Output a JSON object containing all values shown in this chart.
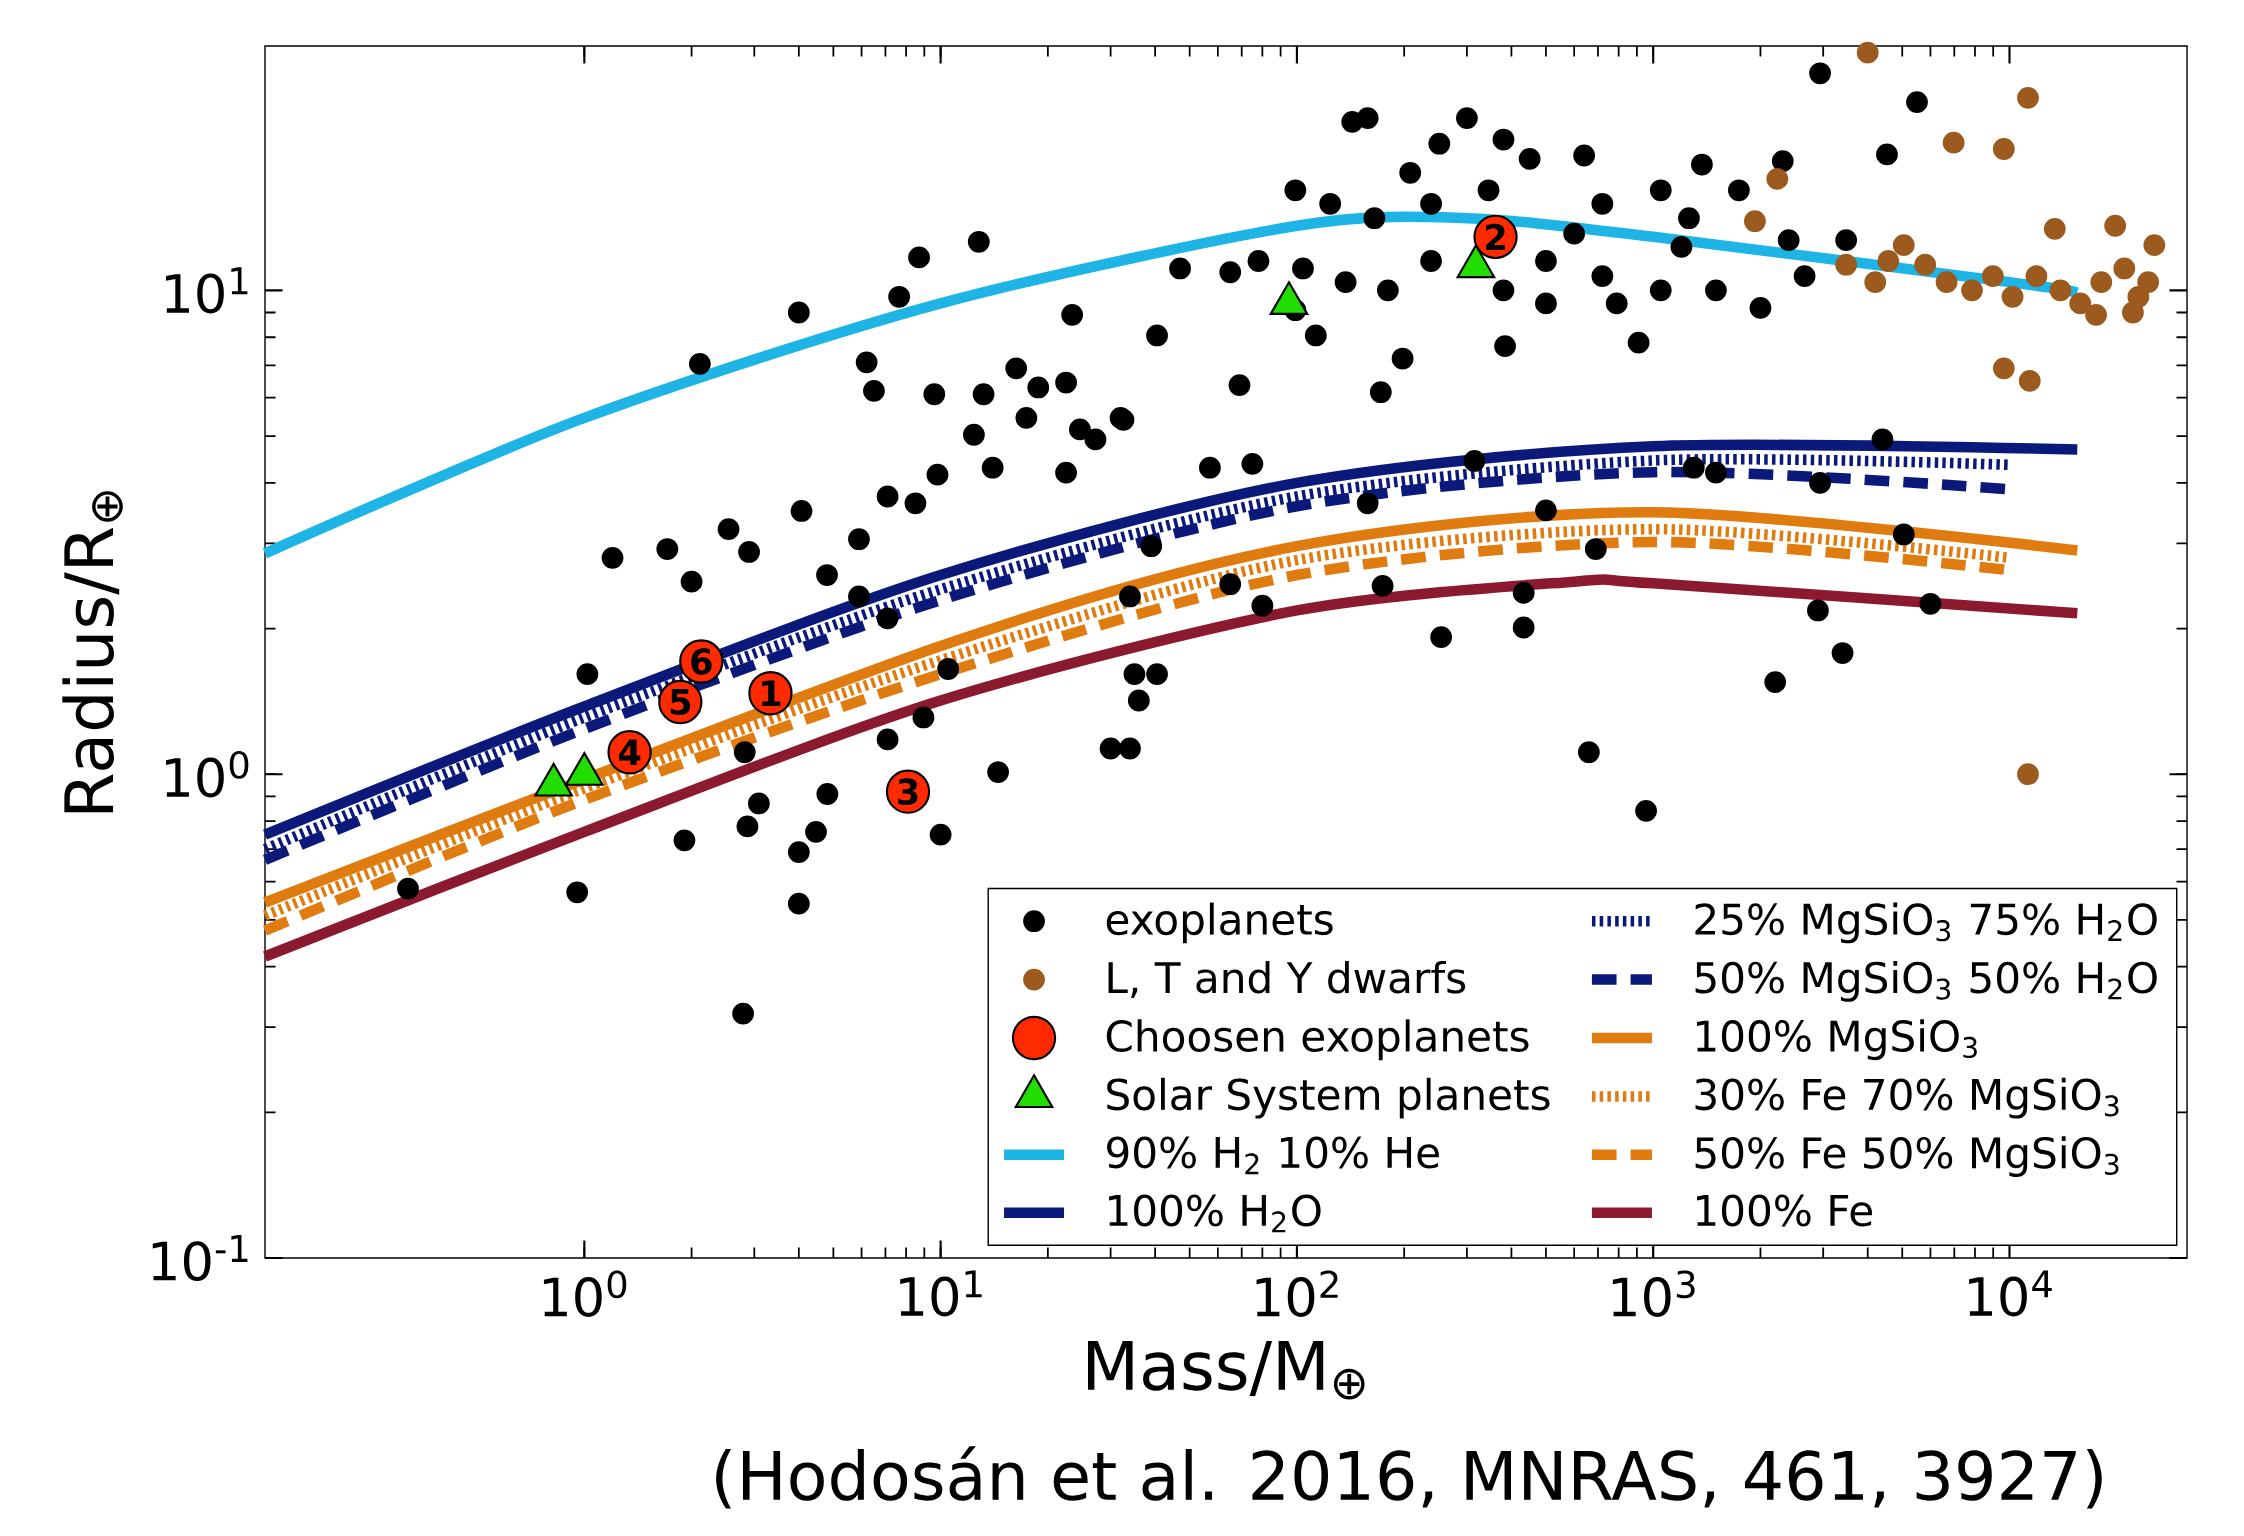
{
  "chart_data": {
    "type": "scatter",
    "xlabel": "Mass/M$_{⊕}$",
    "ylabel": "Radius/R$_{⊕}$",
    "log": "xy",
    "xlim": [
      0.127,
      31500
    ],
    "ylim": [
      0.1,
      32
    ],
    "xticks": [
      {
        "value": 1,
        "label": "10$^{0}$"
      },
      {
        "value": 10,
        "label": "10$^{1}$"
      },
      {
        "value": 100,
        "label": "10$^{2}$"
      },
      {
        "value": 1000,
        "label": "10$^{3}$"
      },
      {
        "value": 10000,
        "label": "10$^{4}$"
      }
    ],
    "yticks": [
      {
        "value": 0.1,
        "label": "10$^{-1}$"
      },
      {
        "value": 1,
        "label": "10$^{0}$"
      },
      {
        "value": 10,
        "label": "10$^{1}$"
      }
    ],
    "legend": "bottom right",
    "annotations": [
      "(Hodosán et al. 2016, MNRAS, 461, 3927)",
      {
        "text": "1",
        "x": 3.33,
        "y": 1.47
      },
      {
        "text": "2",
        "x": 361,
        "y": 12.9
      },
      {
        "text": "3",
        "x": 8.1,
        "y": 0.92
      },
      {
        "text": "4",
        "x": 1.34,
        "y": 1.11
      },
      {
        "text": "5",
        "x": 1.86,
        "y": 1.41
      },
      {
        "text": "6",
        "x": 2.13,
        "y": 1.71
      }
    ],
    "series": [
      {
        "name": "exoplanets",
        "type": "scatter",
        "marker": "circle",
        "color": "#000000",
        "x": [
          0.32,
          0.955,
          2.79,
          4.0,
          4.0,
          1.91,
          2.87,
          3.09,
          4.47,
          4.81,
          10,
          14.5,
          7.1,
          8.95,
          10.5,
          2.82,
          1.02,
          1.2,
          1.71,
          2.0,
          2.11,
          2.54,
          2.9,
          4.07,
          4.0,
          7.65,
          8.7,
          12.8,
          6.2,
          6.5,
          9.6,
          13.2,
          16.3,
          18.8,
          22.5,
          17.4,
          24.6,
          32.6,
          23.4,
          12.4,
          14.0,
          9.8,
          8.5,
          7.1,
          5.9,
          4.8,
          5.9,
          7.1,
          22.5,
          27.2,
          32,
          40.5,
          47,
          65,
          57,
          75,
          69,
          39,
          34,
          35,
          40.5,
          36,
          30,
          34,
          65,
          80,
          113,
          99,
          158,
          174,
          254,
          433,
          433,
          500,
          660,
          955,
          315,
          2200,
          2900,
          3400,
          2940,
          4400,
          5050,
          6000,
          1300,
          1500,
          690,
          384,
          198,
          172,
          910,
          78,
          99,
          143,
          158,
          208,
          300,
          251,
          380,
          450,
          640,
          345,
          238,
          165,
          124,
          104,
          137,
          180,
          238,
          500,
          600,
          720,
          1050,
          1370,
          1260,
          1050,
          1740,
          2400,
          2940,
          5500,
          4530,
          2310,
          790,
          500,
          2000,
          2660,
          3480,
          380,
          720,
          1500,
          1200
        ],
        "values": [
          0.58,
          0.57,
          0.32,
          0.54,
          0.69,
          0.73,
          0.78,
          0.87,
          0.76,
          0.91,
          0.75,
          1.01,
          1.18,
          1.31,
          1.65,
          1.11,
          1.61,
          2.8,
          2.92,
          2.5,
          7.05,
          3.21,
          2.88,
          3.5,
          9.0,
          9.7,
          11.7,
          12.6,
          7.1,
          6.2,
          6.1,
          6.1,
          6.9,
          6.3,
          6.45,
          5.45,
          5.16,
          5.4,
          8.9,
          5.03,
          4.3,
          4.16,
          3.63,
          3.75,
          3.06,
          2.58,
          2.33,
          2.1,
          4.2,
          4.92,
          5.45,
          8.07,
          11.1,
          10.9,
          4.3,
          4.38,
          6.37,
          2.96,
          2.33,
          1.61,
          1.61,
          1.42,
          1.13,
          1.13,
          2.47,
          2.23,
          8.07,
          9.1,
          3.63,
          2.45,
          1.92,
          2.01,
          2.37,
          3.51,
          1.11,
          0.84,
          4.44,
          1.55,
          2.18,
          1.78,
          4.0,
          4.92,
          3.13,
          2.25,
          4.3,
          4.2,
          2.92,
          7.67,
          7.23,
          6.16,
          7.8,
          11.5,
          16.1,
          22.3,
          22.7,
          17.5,
          22.7,
          20.1,
          20.5,
          18.7,
          19.0,
          16.1,
          15.1,
          14.1,
          15.1,
          11.1,
          10.4,
          10.0,
          11.5,
          11.5,
          13.1,
          15.1,
          16.1,
          18.2,
          14.1,
          10.0,
          16.1,
          12.7,
          28.1,
          24.5,
          19.1,
          18.5,
          9.4,
          9.4,
          9.2,
          10.7,
          12.7,
          10.0,
          10.7,
          10.0,
          12.3
        ]
      },
      {
        "name": "L, T and Y dwarfs",
        "type": "scatter",
        "marker": "circle",
        "color": "#9c5a1e",
        "x": [
          4000,
          11270,
          6970,
          9640,
          1930,
          2230,
          13400,
          19800,
          25500,
          9640,
          11400,
          11270,
          5050,
          5800,
          6660,
          7850,
          8980,
          10200,
          11900,
          13900,
          15800,
          18100,
          21000,
          23000,
          17500,
          22200,
          24500,
          4200,
          4570,
          3480
        ],
        "values": [
          31,
          25,
          20.2,
          19.6,
          13.9,
          17.0,
          13.4,
          13.6,
          12.4,
          6.9,
          6.5,
          1.0,
          12.4,
          11.3,
          10.4,
          10.0,
          10.7,
          9.7,
          10.7,
          10.0,
          9.4,
          10.4,
          11.1,
          9.7,
          8.9,
          9.0,
          10.4,
          10.4,
          11.5,
          11.3
        ]
      },
      {
        "name": "Choosen exoplanets",
        "type": "scatter",
        "marker": "circle",
        "color": "#ff2a00",
        "x": [
          3.33,
          361,
          8.1,
          1.34,
          1.86,
          2.13
        ],
        "values": [
          1.47,
          12.9,
          0.92,
          1.11,
          1.41,
          1.71
        ]
      },
      {
        "name": "Solar System planets",
        "type": "scatter",
        "marker": "triangle",
        "color": "#22dd00",
        "x": [
          0.82,
          1,
          95,
          318
        ],
        "values": [
          0.95,
          1.0,
          9.4,
          11.2
        ]
      },
      {
        "name": "90% H$_{2}$ 10% He",
        "type": "line",
        "line_style": "solid",
        "color": "#1eb4e6",
        "x": [
          0.127,
          1,
          10,
          100,
          300,
          1000,
          10000,
          15500
        ],
        "values": [
          2.86,
          5.45,
          9.4,
          13.6,
          14.1,
          12.9,
          10.4,
          9.9
        ]
      },
      {
        "name": "100% H$_{2}$O",
        "type": "line",
        "line_style": "solid",
        "color": "#0b1a7a",
        "x": [
          0.127,
          1,
          10,
          100,
          1000,
          15500
        ],
        "values": [
          0.75,
          1.38,
          2.58,
          4.0,
          4.76,
          4.69
        ]
      },
      {
        "name": "25% MgSiO$_{3}$ 75% H$_{2}$O",
        "type": "line",
        "line_style": "dotted",
        "color": "#0b1a7a",
        "x": [
          0.127,
          1,
          10,
          100,
          1000,
          10000
        ],
        "values": [
          0.7,
          1.31,
          2.41,
          3.75,
          4.45,
          4.36
        ]
      },
      {
        "name": "50% MgSiO$_{3}$ 50% H$_{2}$O",
        "type": "line",
        "line_style": "dashed",
        "color": "#0b1a7a",
        "x": [
          0.127,
          1,
          10,
          100,
          1000,
          10000
        ],
        "values": [
          0.665,
          1.24,
          2.29,
          3.58,
          4.21,
          3.88
        ]
      },
      {
        "name": "100% MgSiO$_{3}$",
        "type": "line",
        "line_style": "solid",
        "color": "#e07b10",
        "x": [
          0.127,
          10,
          100,
          1000,
          15500
        ],
        "values": [
          0.543,
          1.84,
          2.96,
          3.48,
          2.9
        ]
      },
      {
        "name": "30% Fe 70% MgSiO$_{3}$",
        "type": "line",
        "line_style": "dotted",
        "color": "#e07b10",
        "x": [
          0.127,
          1,
          10,
          100,
          1000,
          10000
        ],
        "values": [
          0.51,
          0.935,
          1.72,
          2.77,
          3.21,
          2.8
        ]
      },
      {
        "name": "50% Fe 50% MgSiO$_{3}$",
        "type": "line",
        "line_style": "dashed",
        "color": "#e07b10",
        "x": [
          0.127,
          1,
          10,
          100,
          1000,
          10000
        ],
        "values": [
          0.475,
          0.885,
          1.61,
          2.58,
          3.02,
          2.64
        ]
      },
      {
        "name": "100% Fe",
        "type": "line",
        "line_style": "solid",
        "color": "#8b1a2e",
        "x": [
          0.127,
          1,
          10,
          100,
          600,
          1000,
          15500
        ],
        "values": [
          0.42,
          0.76,
          1.42,
          2.18,
          2.5,
          2.48,
          2.15
        ]
      }
    ]
  }
}
